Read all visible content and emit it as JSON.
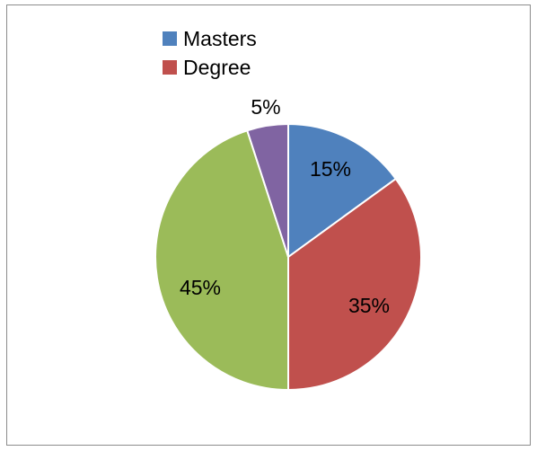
{
  "chart_data": {
    "type": "pie",
    "title": "",
    "categories": [
      "Masters",
      "Degree",
      "",
      ""
    ],
    "values": [
      15,
      35,
      45,
      5
    ],
    "value_labels": [
      "15%",
      "35%",
      "45%",
      "5%"
    ],
    "colors": [
      "#4f81bd",
      "#c0504d",
      "#9bbb59",
      "#8064a2"
    ],
    "legend": {
      "position": "top",
      "entries": [
        "Masters",
        "Degree"
      ]
    }
  }
}
